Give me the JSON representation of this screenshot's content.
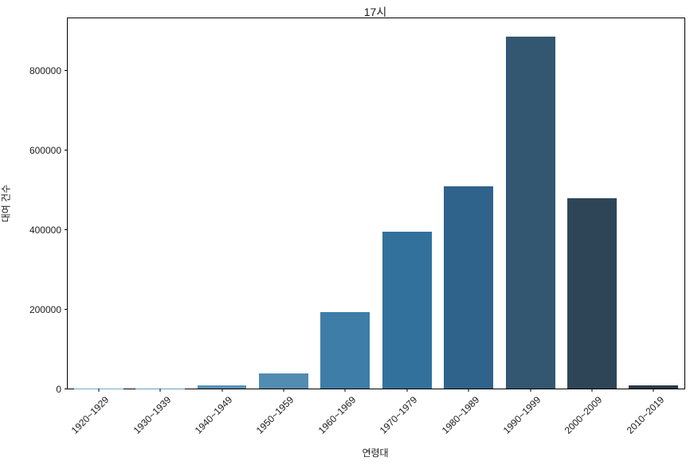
{
  "chart_data": {
    "type": "bar",
    "title": "17시",
    "xlabel": "연령대",
    "ylabel": "대여 건수",
    "categories": [
      "1920~1929",
      "1930~1939",
      "1940~1949",
      "1950~1959",
      "1960~1969",
      "1970~1979",
      "1980~1989",
      "1990~1999",
      "2000~2009",
      "2010~2019"
    ],
    "values": [
      300,
      700,
      8000,
      38500,
      193000,
      394000,
      509000,
      885000,
      480000,
      8500
    ],
    "yticks": [
      0,
      200000,
      400000,
      600000,
      800000
    ],
    "ytick_labels": [
      "0",
      "200000",
      "400000",
      "600000",
      "800000"
    ],
    "ylim": [
      0,
      932000
    ],
    "bar_colors": [
      "#72a9ce",
      "#659cc3",
      "#5991b8",
      "#528cb1",
      "#3d7da7",
      "#32719c",
      "#2f638b",
      "#335771",
      "#2e4557",
      "#2b3a46"
    ],
    "bar_width_fraction": 0.8,
    "grid": false,
    "legend": null,
    "orientation": "vertical"
  },
  "frame": {
    "background": "#ffffff",
    "spine_color": "#000000",
    "text_color": "#1c1c1c"
  }
}
